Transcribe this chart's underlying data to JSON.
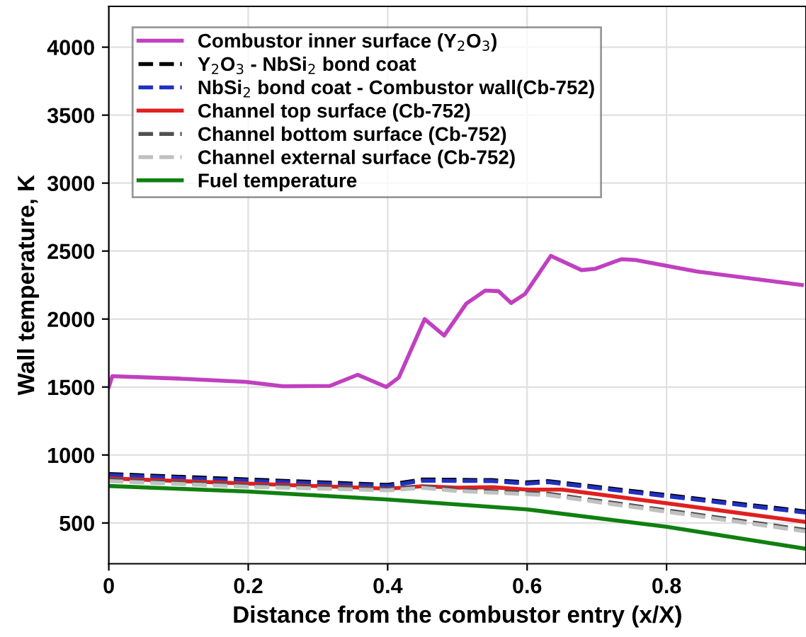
{
  "chart_data": {
    "type": "line",
    "xlabel": "Distance from the combustor entry (x/X)",
    "ylabel": "Wall temperature, K",
    "xlim": [
      0,
      1
    ],
    "ylim": [
      200,
      4300
    ],
    "xticks": [
      0,
      0.2,
      0.4,
      0.6,
      0.8
    ],
    "yticks": [
      500,
      1000,
      1500,
      2000,
      2500,
      3000,
      3500,
      4000
    ],
    "grid": true,
    "legend": "top left",
    "marker": "none",
    "series": [
      {
        "name": "Combustor inner surface (Y$_{2}$O$_{3}$)",
        "color": "#c040c0",
        "line_style": "solid",
        "x": [
          0,
          0.005,
          0.1,
          0.196,
          0.25,
          0.317,
          0.357,
          0.398,
          0.416,
          0.453,
          0.481,
          0.513,
          0.54,
          0.559,
          0.577,
          0.597,
          0.634,
          0.678,
          0.698,
          0.735,
          0.755,
          0.843,
          0.994
        ],
        "values": [
          1500,
          1580,
          1562,
          1538,
          1505,
          1508,
          1590,
          1500,
          1570,
          2000,
          1878,
          2115,
          2210,
          2205,
          2118,
          2185,
          2465,
          2360,
          2370,
          2440,
          2435,
          2350,
          2250
        ]
      },
      {
        "name": "Y$_{2}$O$_{3}$ - NbSi$_{2}$ bond coat",
        "color": "#000000",
        "line_style": "dashed",
        "x": [
          0,
          0.2,
          0.4,
          0.45,
          0.55,
          0.6,
          0.63,
          0.8,
          1.0
        ],
        "values": [
          860,
          820,
          780,
          820,
          815,
          798,
          808,
          705,
          584
        ]
      },
      {
        "name": "NbSi$_{2}$ bond coat - Combustor wall(Cb-752)",
        "color": "#2030c0",
        "line_style": "dashed",
        "x": [
          0,
          0.2,
          0.4,
          0.45,
          0.55,
          0.6,
          0.63,
          0.8,
          1.0
        ],
        "values": [
          852,
          811,
          772,
          811,
          808,
          790,
          800,
          697,
          576
        ]
      },
      {
        "name": "Channel top surface (Cb-752)",
        "color": "#e02020",
        "line_style": "solid",
        "x": [
          0,
          0.2,
          0.4,
          0.45,
          0.5,
          0.55,
          0.6,
          0.65,
          0.8,
          1.0
        ],
        "values": [
          828,
          790,
          752,
          770,
          760,
          763,
          745,
          745,
          645,
          507
        ]
      },
      {
        "name": "Channel bottom surface (Cb-752)",
        "color": "#505050",
        "line_style": "dashed",
        "x": [
          0,
          0.2,
          0.4,
          0.45,
          0.5,
          0.6,
          0.63,
          0.8,
          1.0
        ],
        "values": [
          818,
          776,
          750,
          768,
          745,
          722,
          715,
          593,
          448
        ]
      },
      {
        "name": "Channel external surface (Cb-752)",
        "color": "#c0c0c0",
        "line_style": "dashed",
        "x": [
          0,
          0.2,
          0.4,
          0.45,
          0.5,
          0.6,
          0.63,
          0.8,
          1.0
        ],
        "values": [
          808,
          766,
          740,
          758,
          735,
          712,
          705,
          583,
          438
        ]
      },
      {
        "name": "Fuel temperature",
        "color": "#108010",
        "line_style": "solid",
        "x": [
          0,
          0.2,
          0.4,
          0.6,
          0.8,
          1.0
        ],
        "values": [
          772,
          731,
          673,
          600,
          472,
          310
        ]
      }
    ]
  }
}
